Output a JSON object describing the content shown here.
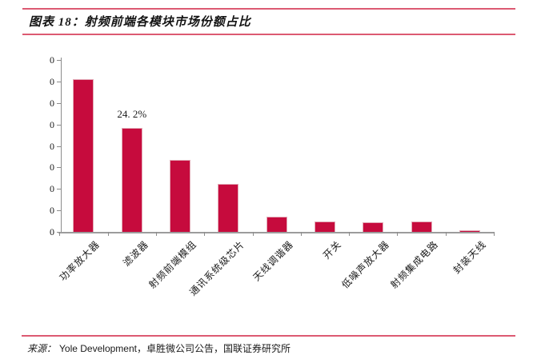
{
  "header": {
    "title": "图表 18：射频前端各模块市场份额占比"
  },
  "chart_data": {
    "type": "bar",
    "title": "图表 18：射频前端各模块市场份额占比",
    "categories": [
      "功率放大器",
      "滤波器",
      "射频前端模组",
      "通讯系统级芯片",
      "天线调谐器",
      "开关",
      "低噪声放大器",
      "射频集成电路",
      "封装天线"
    ],
    "values": [
      35.5,
      24.2,
      16.7,
      11.2,
      3.5,
      2.5,
      2.3,
      2.4,
      0.3
    ],
    "unit": "%",
    "bar_labels": [
      "",
      "24. 2%",
      "",
      "",
      "",
      "",
      "",
      "",
      ""
    ],
    "y_tick_labels": [
      "0",
      "0",
      "0",
      "0",
      "0",
      "0",
      "0",
      "0",
      "0"
    ],
    "ylim": [
      0,
      40
    ],
    "grid": false,
    "legend": false,
    "bar_color": "#C60B3D",
    "bar_edge_color": "#E2A9B6",
    "axis_color": "#8C8C8C",
    "label_color": "#1A1A1A"
  },
  "footer": {
    "source_label": "来源：",
    "source_text": "Yole Development，卓胜微公司公告，国联证券研究所"
  },
  "style": {
    "rule_color": "#DC5A72"
  }
}
